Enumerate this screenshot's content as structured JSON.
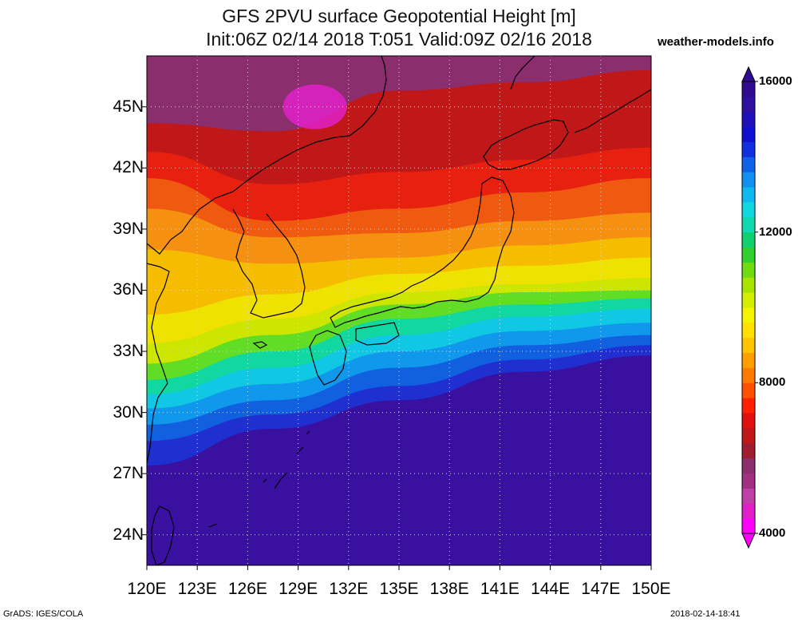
{
  "title": {
    "line1": "GFS 2PVU surface Geopotential Height [m]",
    "line2": "Init:06Z 02/14 2018 T:051 Valid:09Z 02/16 2018"
  },
  "brand": "weather-models.info",
  "map": {
    "lon_range": [
      120,
      150
    ],
    "lat_range": [
      22.5,
      47.5
    ],
    "lat_ticks": [
      {
        "value": 45,
        "label": "45N"
      },
      {
        "value": 42,
        "label": "42N"
      },
      {
        "value": 39,
        "label": "39N"
      },
      {
        "value": 36,
        "label": "36N"
      },
      {
        "value": 33,
        "label": "33N"
      },
      {
        "value": 30,
        "label": "30N"
      },
      {
        "value": 27,
        "label": "27N"
      },
      {
        "value": 24,
        "label": "24N"
      }
    ],
    "lon_ticks": [
      {
        "value": 120,
        "label": "120E"
      },
      {
        "value": 123,
        "label": "123E"
      },
      {
        "value": 126,
        "label": "126E"
      },
      {
        "value": 129,
        "label": "129E"
      },
      {
        "value": 132,
        "label": "132E"
      },
      {
        "value": 135,
        "label": "135E"
      },
      {
        "value": 138,
        "label": "138E"
      },
      {
        "value": 141,
        "label": "141E"
      },
      {
        "value": 144,
        "label": "144E"
      },
      {
        "value": 147,
        "label": "147E"
      },
      {
        "value": 150,
        "label": "150E"
      }
    ],
    "grid": "dotted",
    "field_bands": [
      {
        "color": "#8b2e6e",
        "level_lat": [
          47.5,
          47.5,
          47.5,
          47.5,
          47.5
        ]
      },
      {
        "color": "#c01818",
        "level_lat": [
          44.2,
          43.8,
          45.8,
          46.2,
          46.8
        ]
      },
      {
        "color": "#e82010",
        "level_lat": [
          42.8,
          41.2,
          41.8,
          42.4,
          43.0
        ]
      },
      {
        "color": "#f05a10",
        "level_lat": [
          41.5,
          39.4,
          40.0,
          40.8,
          41.5
        ]
      },
      {
        "color": "#f59010",
        "level_lat": [
          40.0,
          38.6,
          38.8,
          39.4,
          39.8
        ]
      },
      {
        "color": "#f6bc00",
        "level_lat": [
          38.0,
          37.3,
          37.6,
          38.2,
          38.6
        ]
      },
      {
        "color": "#f0e200",
        "level_lat": [
          34.8,
          35.8,
          36.8,
          37.2,
          37.6
        ]
      },
      {
        "color": "#cde600",
        "level_lat": [
          33.4,
          34.6,
          35.9,
          36.3,
          36.6
        ]
      },
      {
        "color": "#62dd25",
        "level_lat": [
          32.4,
          33.8,
          35.3,
          35.9,
          36.0
        ]
      },
      {
        "color": "#10d8a0",
        "level_lat": [
          31.6,
          33.0,
          34.6,
          35.3,
          35.6
        ]
      },
      {
        "color": "#10c8e4",
        "level_lat": [
          30.9,
          32.2,
          33.8,
          34.7,
          35.1
        ]
      },
      {
        "color": "#1098ec",
        "level_lat": [
          30.2,
          31.4,
          33.0,
          34.0,
          34.4
        ]
      },
      {
        "color": "#1060e0",
        "level_lat": [
          29.4,
          30.6,
          32.2,
          33.3,
          33.8
        ]
      },
      {
        "color": "#1f2fd0",
        "level_lat": [
          28.6,
          29.9,
          31.3,
          32.6,
          33.3
        ]
      },
      {
        "color": "#3a10a0",
        "level_lat": [
          27.4,
          29.2,
          30.6,
          32.0,
          32.8
        ]
      }
    ],
    "low_center": {
      "color": "#e020c8",
      "lon": 130,
      "lat": 45
    }
  },
  "colorbar": {
    "labels": [
      {
        "value": 16000,
        "label": "16000"
      },
      {
        "value": 12000,
        "label": "12000"
      },
      {
        "value": 8000,
        "label": "8000"
      },
      {
        "value": 4000,
        "label": "4000"
      }
    ],
    "range": [
      4000,
      16000
    ],
    "colors": [
      "#ff00ff",
      "#e020c8",
      "#c040a8",
      "#a03080",
      "#8b2e6e",
      "#a01c30",
      "#c01818",
      "#e01010",
      "#ff2000",
      "#ff5000",
      "#ff7a00",
      "#ff9e00",
      "#ffc400",
      "#ffe000",
      "#f4f400",
      "#d4ee00",
      "#a8e400",
      "#70dc10",
      "#30d030",
      "#10d070",
      "#10d8b0",
      "#10d8e0",
      "#10b8f0",
      "#1090f0",
      "#1060e8",
      "#1030e0",
      "#1010d0",
      "#2010b8",
      "#3010a0",
      "#300a90"
    ]
  },
  "footer": {
    "left": "GrADS: IGES/COLA",
    "right": "2018-02-14-18:41"
  }
}
